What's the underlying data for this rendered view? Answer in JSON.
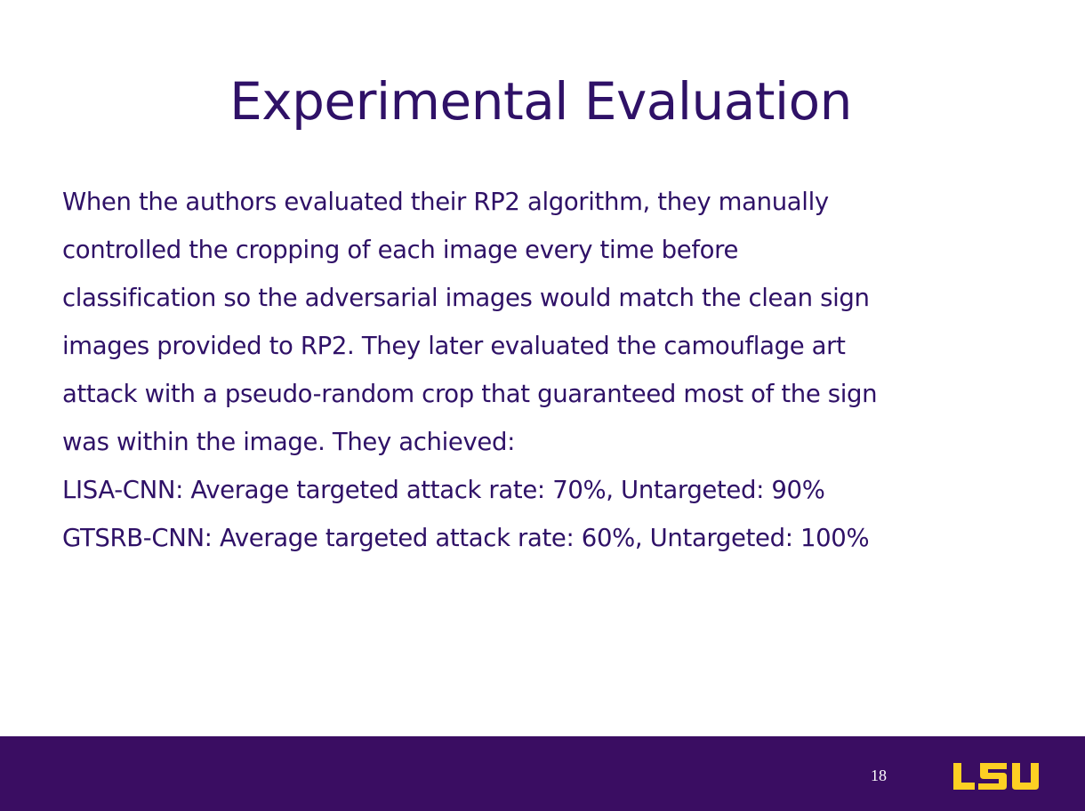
{
  "slide": {
    "title": "Experimental Evaluation",
    "body_lines": [
      "When the authors evaluated their RP2 algorithm, they manually",
      "controlled the cropping of each image every time before",
      "classification so the adversarial images would match the clean sign",
      "images provided to RP2. They later evaluated the camouflage art",
      "attack with a pseudo-random crop that guaranteed most of the sign",
      "was within the image. They achieved:",
      "LISA-CNN: Average targeted attack rate: 70%, Untargeted: 90%",
      "GTSRB-CNN: Average targeted attack rate: 60%, Untargeted: 100%"
    ]
  },
  "footer": {
    "page_number": "18",
    "logo_text": "LSU",
    "logo_icon": "lsu-logo-icon"
  },
  "colors": {
    "text": "#2f1167",
    "footer_bg": "#3a0d62",
    "logo_gold": "#fdd023"
  }
}
